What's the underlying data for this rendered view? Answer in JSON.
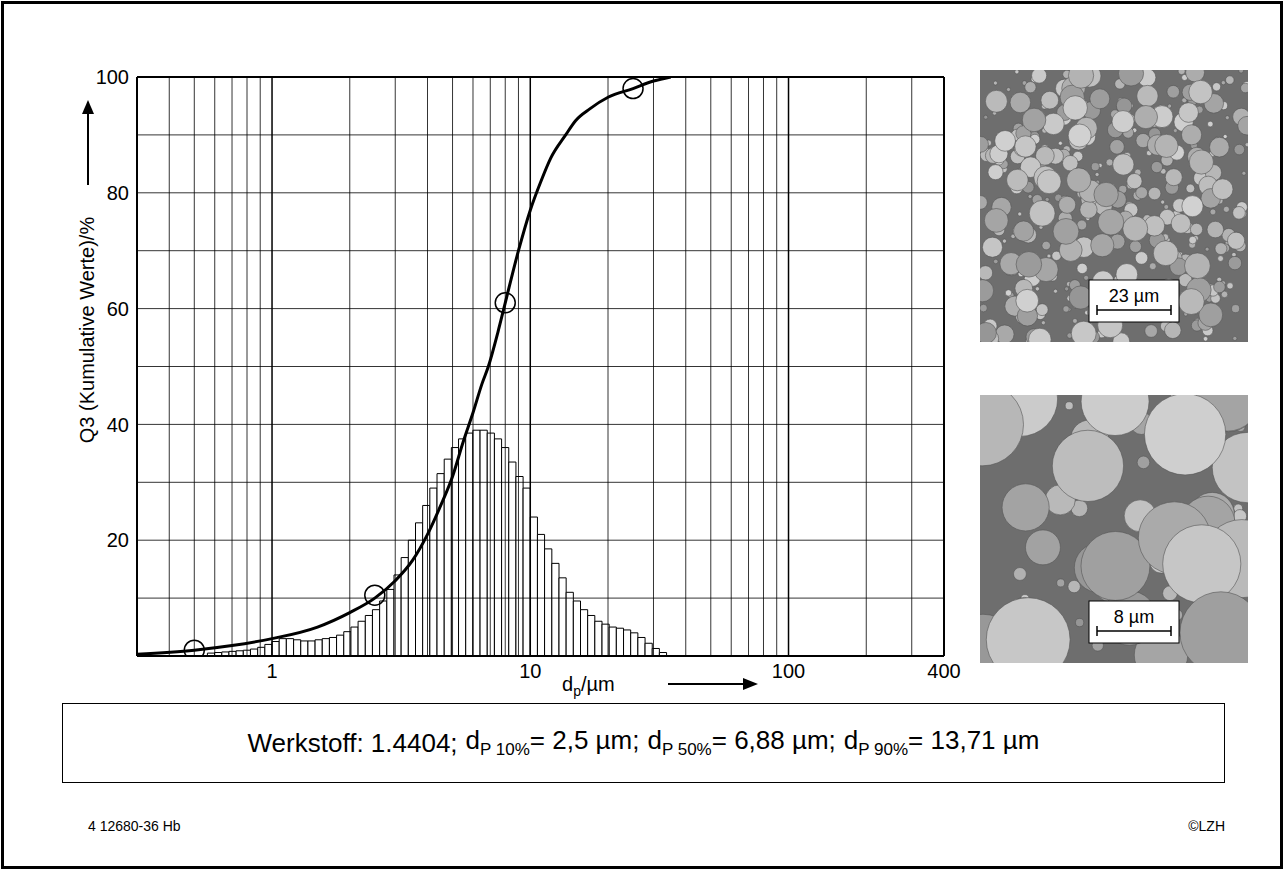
{
  "chart_data": {
    "type": "histogram",
    "y_label": "Q3 (Kumulative Werte)/%",
    "x_label": {
      "text": "d",
      "sub": "p",
      "rest": "/µm"
    },
    "xlim": [
      0.3,
      400
    ],
    "xticks": [
      1,
      10,
      100,
      400
    ],
    "ylim": [
      0,
      100
    ],
    "yticks": [
      20,
      40,
      60,
      80,
      100
    ],
    "log": "x",
    "grid": true,
    "series": [
      {
        "type": "bar",
        "color": "#ffffff",
        "bins": [
          0.562,
          0.599,
          0.639,
          0.681,
          0.726,
          0.774,
          0.825,
          0.88,
          0.938,
          1,
          1.066,
          1.136,
          1.212,
          1.292,
          1.377,
          1.468,
          1.565,
          1.668,
          1.778,
          1.896,
          2.021,
          2.154,
          2.297,
          2.448,
          2.61,
          2.783,
          2.967,
          3.162,
          3.371,
          3.594,
          3.831,
          4.084,
          4.354,
          4.642,
          4.948,
          5.275,
          5.623,
          5.995,
          6.391,
          6.813,
          7.263,
          7.743,
          8.254,
          8.799,
          9.38,
          10,
          10.66,
          11.36,
          12.12,
          12.92,
          13.77,
          14.68,
          15.65,
          16.68,
          17.78,
          18.96,
          20.21,
          21.54,
          22.97,
          24.48,
          26.1,
          27.83,
          29.67,
          31.62,
          33.71
        ],
        "values": [
          0.5,
          0.6,
          0.7,
          0.8,
          0.9,
          1.0,
          1.2,
          1.5,
          2.0,
          2.5,
          3.0,
          3.0,
          2.8,
          2.6,
          2.6,
          2.8,
          3.0,
          3.2,
          3.6,
          4.2,
          5.0,
          6.0,
          7.0,
          8.0,
          9.5,
          11.5,
          14,
          17,
          20,
          23,
          26,
          29,
          31.5,
          34,
          36,
          37.5,
          38.5,
          39,
          39,
          38.5,
          37.5,
          36,
          33.5,
          31,
          29,
          24,
          21,
          18.5,
          16,
          13.5,
          11,
          9.5,
          8,
          7,
          6,
          5.5,
          5,
          4.8,
          4.5,
          4,
          3.2,
          2.2,
          1.3,
          0.6
        ]
      },
      {
        "type": "line",
        "color": "#000000",
        "x": [
          0.3,
          0.5,
          0.7,
          1,
          1.5,
          2,
          2.5,
          3,
          3.5,
          4,
          4.5,
          5,
          5.5,
          6,
          6.5,
          6.88,
          7.5,
          8,
          9,
          10,
          11,
          12,
          13.71,
          15,
          17,
          20,
          25,
          30,
          35
        ],
        "values": [
          0.3,
          1,
          1.8,
          3,
          5,
          7.5,
          10,
          13,
          16.5,
          21,
          26,
          31,
          37,
          42,
          47,
          50,
          56,
          61,
          70,
          77,
          82,
          86,
          90,
          92.5,
          94.5,
          96.5,
          98,
          99.3,
          100
        ]
      },
      {
        "type": "scatter",
        "marker": "circle",
        "color": "#000000",
        "x": [
          0.5,
          2.5,
          8,
          25
        ],
        "values": [
          1,
          10.5,
          61,
          98
        ]
      }
    ]
  },
  "caption": {
    "material": "Werkstoff: 1.4404;",
    "items": [
      {
        "symbol": "d",
        "sub": "P 10%",
        "text": "= 2,5 µm;"
      },
      {
        "symbol": "d",
        "sub": "P 50%",
        "text": "= 6,88 µm;"
      },
      {
        "symbol": "d",
        "sub": "P 90%",
        "text": "= 13,71 µm"
      }
    ]
  },
  "images": [
    {
      "scale_bar": "23 µm"
    },
    {
      "scale_bar": "8 µm"
    }
  ],
  "footer": {
    "left": "4 12680-36 Hb",
    "right": "©LZH"
  }
}
